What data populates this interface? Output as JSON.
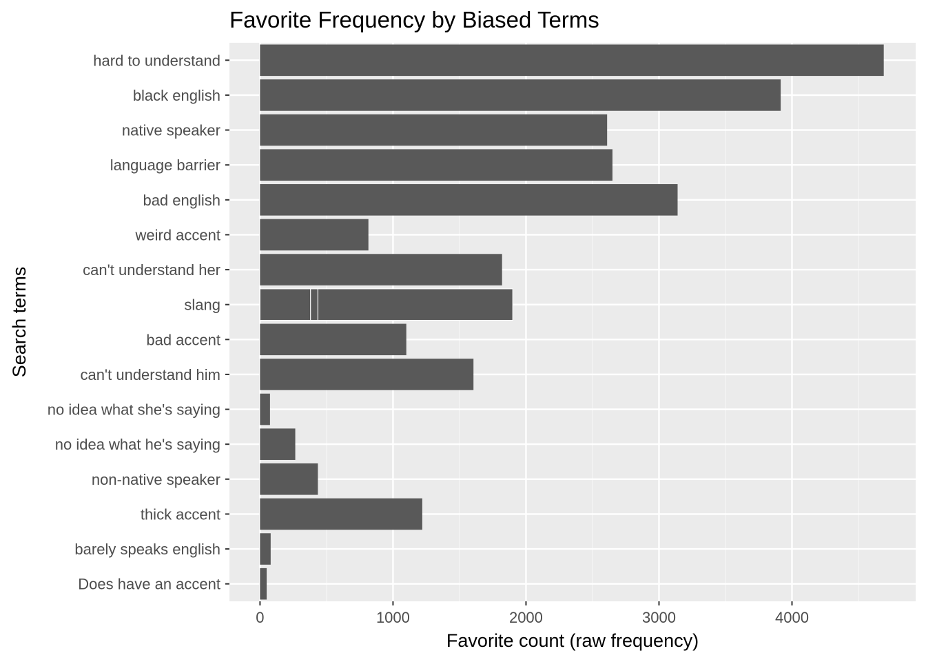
{
  "chart_data": {
    "type": "bar",
    "orientation": "horizontal",
    "title": "Favorite Frequency by Biased Terms",
    "xlabel": "Favorite count (raw frequency)",
    "ylabel": "Search terms",
    "categories": [
      "hard to understand",
      "black english",
      "native speaker",
      "language barrier",
      "bad english",
      "weird accent",
      "can't understand her",
      "slang",
      "bad accent",
      "can't understand him",
      "no idea what she's saying",
      "no idea what he's saying",
      "non-native speaker",
      "thick accent",
      "barely speaks english",
      "Does have an accent"
    ],
    "values": [
      4690,
      3915,
      2610,
      2650,
      3140,
      815,
      1820,
      1900,
      1100,
      1605,
      75,
      265,
      435,
      1220,
      80,
      50
    ],
    "stacked_segments": {
      "slang": [
        380,
        55,
        1465
      ]
    },
    "xlim": [
      -230,
      4930
    ],
    "xticks": [
      0,
      1000,
      2000,
      3000,
      4000
    ],
    "grid": true,
    "legend": "none",
    "colors": {
      "bar": "#595959",
      "panel": "#ebebeb",
      "grid_major": "#ffffff",
      "grid_minor": "#f5f5f5",
      "tick_label": "#4d4d4d"
    }
  }
}
